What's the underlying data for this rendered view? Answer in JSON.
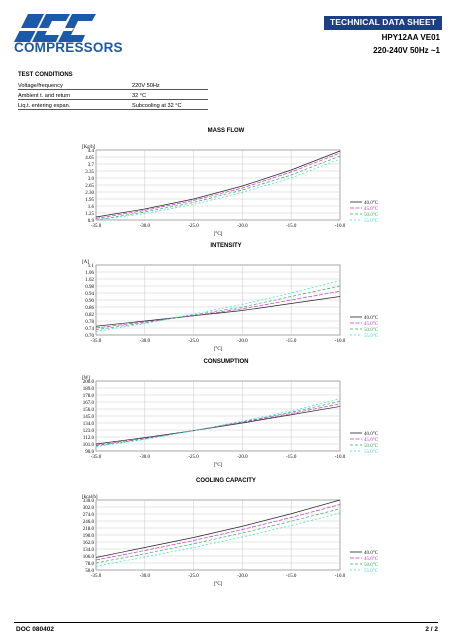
{
  "header": {
    "logo_text": "COMPRESSORS",
    "sheet_type": "TECHNICAL DATA SHEET",
    "model": "HPY12AA VE01",
    "voltage": "220-240V 50Hz ~1"
  },
  "test_conditions": {
    "title": "TEST CONDITIONS",
    "rows": [
      {
        "label": "Voltage/frequency",
        "value": "220V 50Hz"
      },
      {
        "label": "Ambient t. and return",
        "value": "32 °C"
      },
      {
        "label": "Liq.t. entering expan.",
        "value": "Subcooling at 32 °C"
      }
    ]
  },
  "legend_labels": [
    "40.0°C",
    "45.0°C",
    "50.0°C",
    "55.0°C"
  ],
  "series_colors": [
    "#222222",
    "#cc33cc",
    "#33aa55",
    "#33dddd"
  ],
  "chart_data": [
    {
      "type": "line",
      "title": "MASS FLOW",
      "ylabel": "[Kg/h]",
      "xlabel": "[°C]",
      "x": [
        -35,
        -30,
        -25,
        -20,
        -15,
        -10
      ],
      "x_ticks": [
        "-35.0",
        "-30.0",
        "-25.0",
        "-20.0",
        "-15.0",
        "-10.0"
      ],
      "y_ticks": [
        "4.4",
        "4.05",
        "3.7",
        "3.35",
        "3.0",
        "2.65",
        "2.30",
        "1.95",
        "1.6",
        "1.25",
        "0.9"
      ],
      "ylim": [
        0.9,
        4.4
      ],
      "xlim": [
        -35,
        -10
      ],
      "grid": true,
      "series": [
        {
          "name": "40.0°C",
          "values": [
            1.05,
            1.45,
            1.95,
            2.6,
            3.4,
            4.35
          ]
        },
        {
          "name": "45.0°C",
          "values": [
            0.98,
            1.38,
            1.88,
            2.5,
            3.3,
            4.25
          ]
        },
        {
          "name": "50.0°C",
          "values": [
            0.9,
            1.3,
            1.78,
            2.4,
            3.15,
            4.1
          ]
        },
        {
          "name": "55.0°C",
          "values": [
            0.9,
            1.22,
            1.68,
            2.28,
            3.0,
            3.95
          ]
        }
      ]
    },
    {
      "type": "line",
      "title": "INTENSITY",
      "ylabel": "[A]",
      "xlabel": "[°C]",
      "x": [
        -35,
        -30,
        -25,
        -20,
        -15,
        -10
      ],
      "x_ticks": [
        "-35.0",
        "-30.0",
        "-25.0",
        "-20.0",
        "-15.0",
        "-10.0"
      ],
      "y_ticks": [
        "1.1",
        "1.06",
        "1.02",
        "0.98",
        "0.94",
        "0.90",
        "0.86",
        "0.82",
        "0.78",
        "0.74",
        "0.70"
      ],
      "ylim": [
        0.7,
        1.1
      ],
      "xlim": [
        -35,
        -10
      ],
      "grid": true,
      "series": [
        {
          "name": "40.0°C",
          "values": [
            0.75,
            0.78,
            0.81,
            0.84,
            0.88,
            0.92
          ]
        },
        {
          "name": "45.0°C",
          "values": [
            0.74,
            0.775,
            0.81,
            0.85,
            0.9,
            0.95
          ]
        },
        {
          "name": "50.0°C",
          "values": [
            0.73,
            0.77,
            0.815,
            0.86,
            0.92,
            0.98
          ]
        },
        {
          "name": "55.0°C",
          "values": [
            0.72,
            0.765,
            0.82,
            0.875,
            0.94,
            1.01
          ]
        }
      ]
    },
    {
      "type": "line",
      "title": "CONSUMPTION",
      "ylabel": "[W]",
      "xlabel": "[°C]",
      "x": [
        -35,
        -30,
        -25,
        -20,
        -15,
        -10
      ],
      "x_ticks": [
        "-35.0",
        "-30.0",
        "-25.0",
        "-20.0",
        "-15.0",
        "-10.0"
      ],
      "y_ticks": [
        "200.0",
        "189.0",
        "178.0",
        "167.0",
        "156.0",
        "145.0",
        "134.0",
        "123.0",
        "112.0",
        "101.0",
        "90.0"
      ],
      "ylim": [
        90,
        200
      ],
      "xlim": [
        -35,
        -10
      ],
      "grid": true,
      "series": [
        {
          "name": "40.0°C",
          "values": [
            101,
            111,
            122,
            134,
            147,
            160
          ]
        },
        {
          "name": "45.0°C",
          "values": [
            99,
            110,
            122,
            135,
            149,
            164
          ]
        },
        {
          "name": "50.0°C",
          "values": [
            98,
            109,
            122,
            136,
            151,
            168
          ]
        },
        {
          "name": "55.0°C",
          "values": [
            97,
            108,
            122,
            137,
            153,
            172
          ]
        }
      ]
    },
    {
      "type": "line",
      "title": "COOLING CAPACITY",
      "ylabel": "[kcal/h]",
      "xlabel": "[°C]",
      "x": [
        -35,
        -30,
        -25,
        -20,
        -15,
        -10
      ],
      "x_ticks": [
        "-35.0",
        "-30.0",
        "-25.0",
        "-20.0",
        "-15.0",
        "-10.0"
      ],
      "y_ticks": [
        "330.0",
        "302.0",
        "274.0",
        "246.0",
        "218.0",
        "190.0",
        "162.0",
        "134.0",
        "106.0",
        "78.0",
        "50.0"
      ],
      "ylim": [
        50,
        330
      ],
      "xlim": [
        -35,
        -10
      ],
      "grid": true,
      "series": [
        {
          "name": "40.0°C",
          "values": [
            100,
            140,
            180,
            225,
            275,
            330
          ]
        },
        {
          "name": "45.0°C",
          "values": [
            90,
            128,
            168,
            212,
            260,
            312
          ]
        },
        {
          "name": "50.0°C",
          "values": [
            78,
            115,
            155,
            198,
            245,
            295
          ]
        },
        {
          "name": "55.0°C",
          "values": [
            65,
            102,
            140,
            182,
            228,
            278
          ]
        }
      ]
    }
  ],
  "footer": {
    "doc": "DOC 080402",
    "page": "2 / 2"
  }
}
